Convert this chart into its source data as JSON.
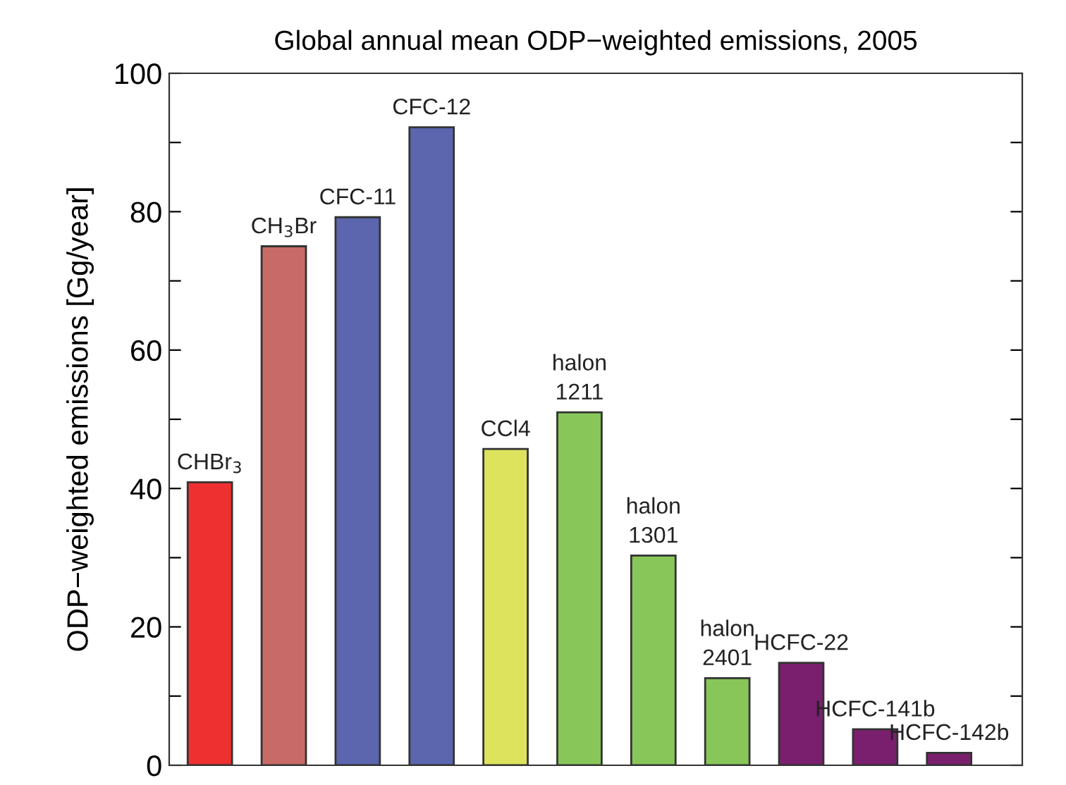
{
  "chart_data": {
    "type": "bar",
    "title": "Global annual mean ODP−weighted emissions, 2005",
    "ylabel": "ODP−weighted emissions [Gg/year]",
    "categories": [
      "CHBr$_{3}$",
      "CH$_{3}$Br",
      "CFC-11",
      "CFC-12",
      "CCl4",
      "halon\n1211",
      "halon\n1301",
      "halon\n2401",
      "HCFC-22",
      "HCFC-141b",
      "HCFC-142b"
    ],
    "values": [
      40.9,
      75.0,
      79.2,
      92.2,
      45.7,
      51.0,
      30.3,
      12.6,
      14.8,
      5.2,
      1.8
    ],
    "colors": [
      "#ee3030",
      "#c86b68",
      "#5b66ae",
      "#5b66ae",
      "#dde35c",
      "#88c65a",
      "#88c65a",
      "#88c65a",
      "#7a1f6e",
      "#7a1f6e",
      "#7a1f6e"
    ],
    "ylim": [
      0,
      100
    ],
    "yticks": [
      0,
      {
        "value": 10,
        "label": null
      },
      20,
      {
        "value": 30,
        "label": null
      },
      40,
      {
        "value": 50,
        "label": null
      },
      60,
      {
        "value": 70,
        "label": null
      },
      80,
      {
        "value": 90,
        "label": null
      },
      100
    ],
    "tick_labels": "y",
    "grid": false,
    "legend": false
  }
}
